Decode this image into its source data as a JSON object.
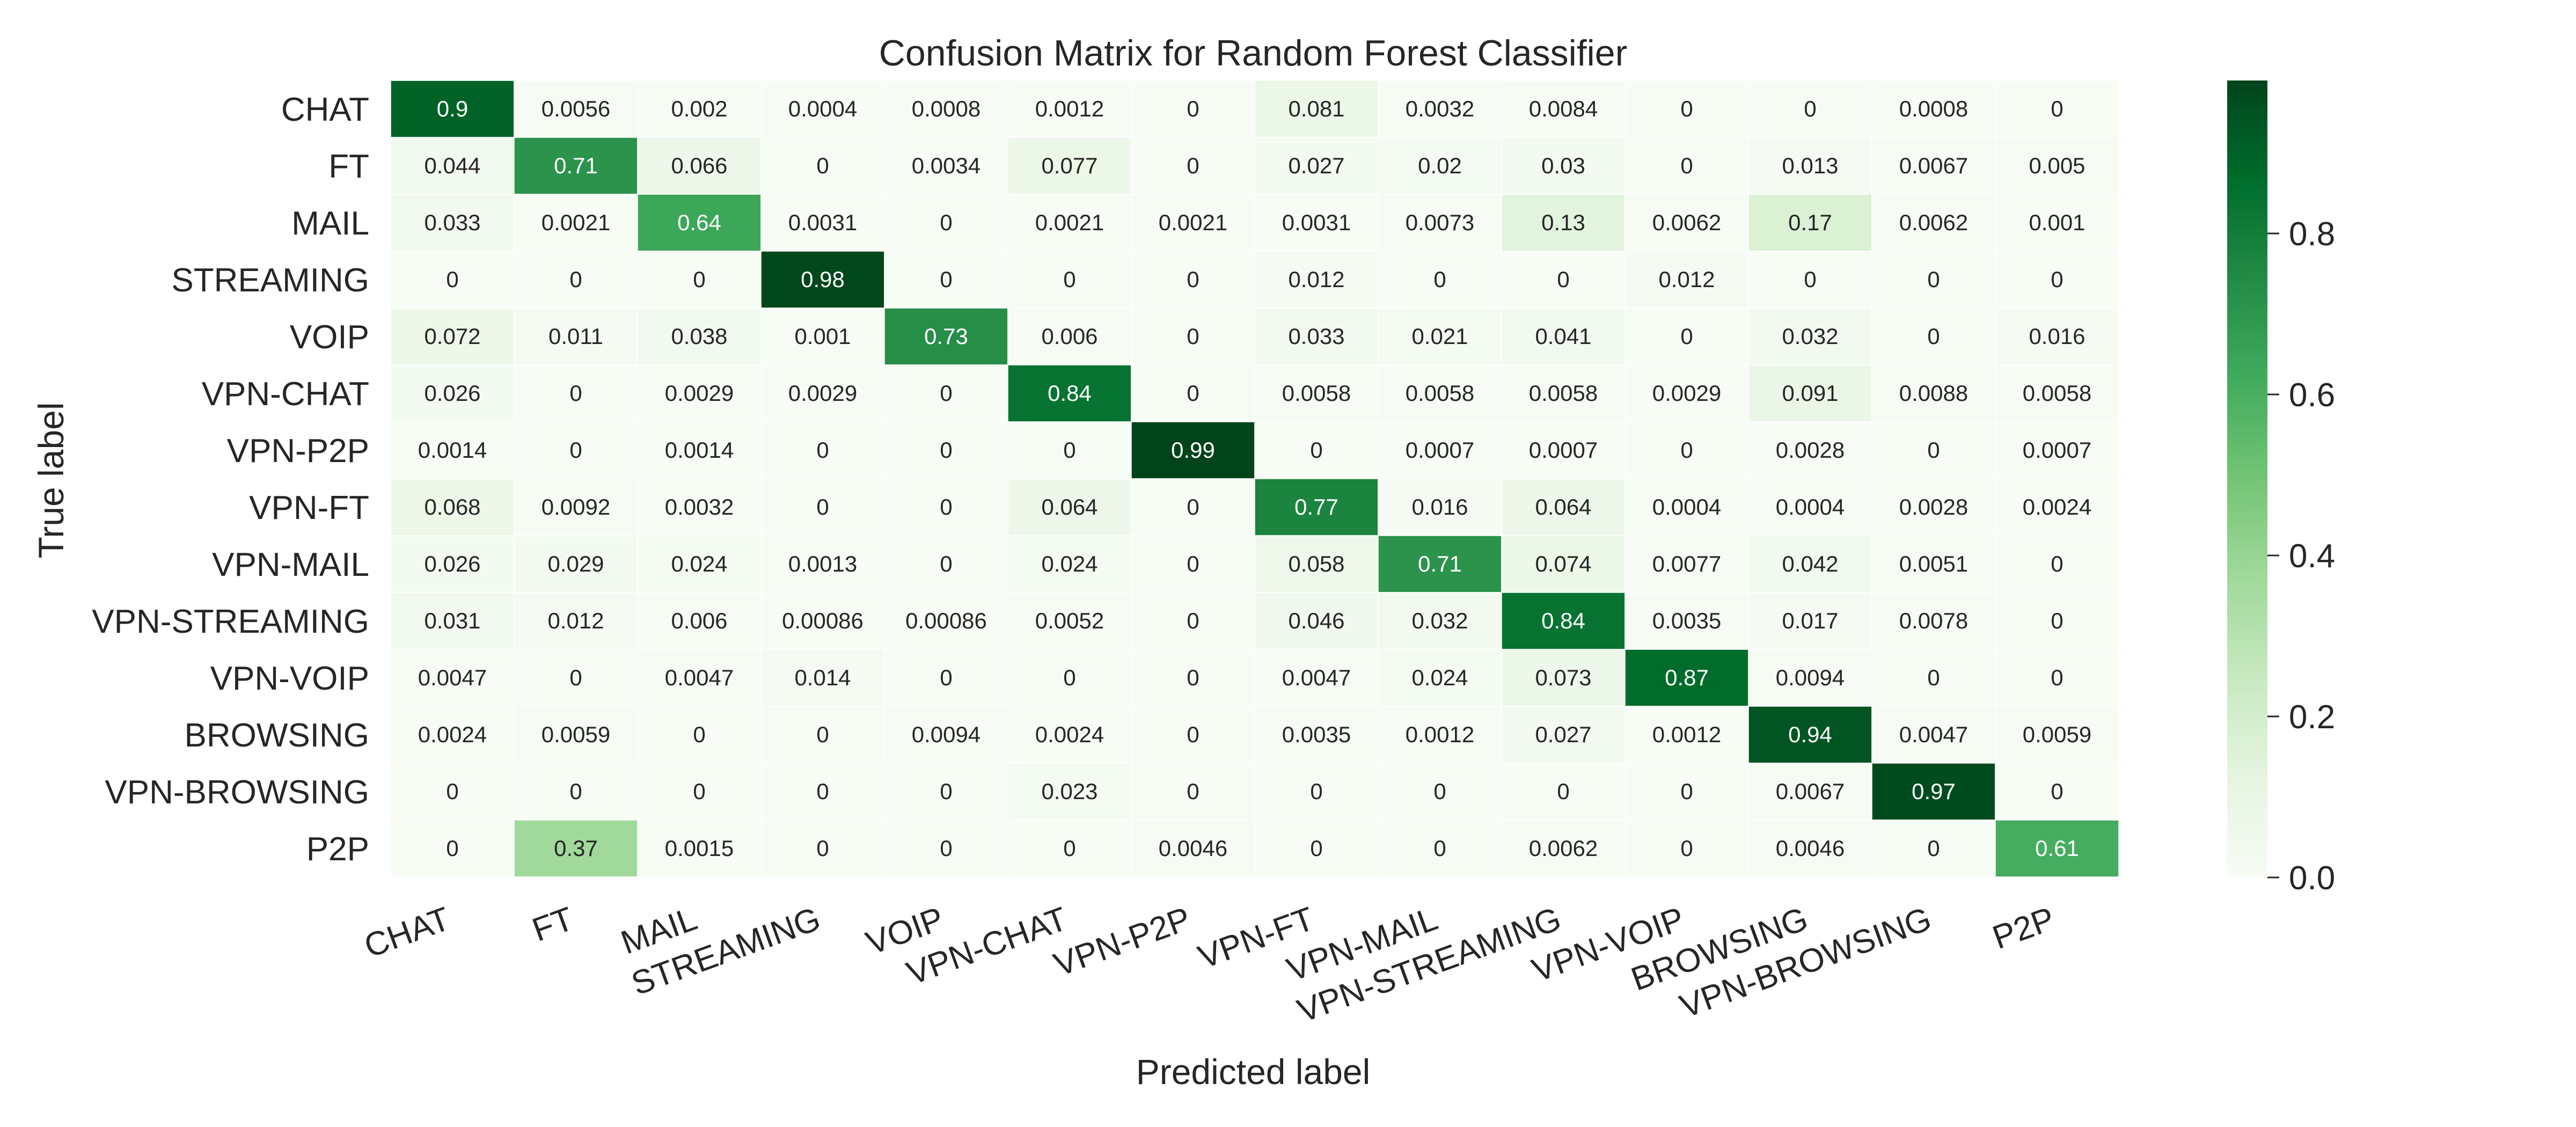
{
  "chart_data": {
    "type": "heatmap",
    "title": "Confusion Matrix for Random Forest Classifier",
    "xlabel": "Predicted label",
    "ylabel": "True label",
    "row_labels": [
      "CHAT",
      "FT",
      "MAIL",
      "STREAMING",
      "VOIP",
      "VPN-CHAT",
      "VPN-P2P",
      "VPN-FT",
      "VPN-MAIL",
      "VPN-STREAMING",
      "VPN-VOIP",
      "BROWSING",
      "VPN-BROWSING",
      "P2P"
    ],
    "col_labels": [
      "CHAT",
      "FT",
      "MAIL",
      "STREAMING",
      "VOIP",
      "VPN-CHAT",
      "VPN-P2P",
      "VPN-FT",
      "VPN-MAIL",
      "VPN-STREAMING",
      "VPN-VOIP",
      "BROWSING",
      "VPN-BROWSING",
      "P2P"
    ],
    "values": [
      [
        0.9,
        0.0056,
        0.002,
        0.0004,
        0.0008,
        0.0012,
        0,
        0.081,
        0.0032,
        0.0084,
        0,
        0,
        0.0008,
        0
      ],
      [
        0.044,
        0.71,
        0.066,
        0,
        0.0034,
        0.077,
        0,
        0.027,
        0.02,
        0.03,
        0,
        0.013,
        0.0067,
        0.005
      ],
      [
        0.033,
        0.0021,
        0.64,
        0.0031,
        0,
        0.0021,
        0.0021,
        0.0031,
        0.0073,
        0.13,
        0.0062,
        0.17,
        0.0062,
        0.001
      ],
      [
        0,
        0,
        0,
        0.98,
        0,
        0,
        0,
        0.012,
        0,
        0,
        0.012,
        0,
        0,
        0
      ],
      [
        0.072,
        0.011,
        0.038,
        0.001,
        0.73,
        0.006,
        0,
        0.033,
        0.021,
        0.041,
        0,
        0.032,
        0,
        0.016
      ],
      [
        0.026,
        0,
        0.0029,
        0.0029,
        0,
        0.84,
        0,
        0.0058,
        0.0058,
        0.0058,
        0.0029,
        0.091,
        0.0088,
        0.0058
      ],
      [
        0.0014,
        0,
        0.0014,
        0,
        0,
        0,
        0.99,
        0,
        0.0007,
        0.0007,
        0,
        0.0028,
        0,
        0.0007
      ],
      [
        0.068,
        0.0092,
        0.0032,
        0,
        0,
        0.064,
        0,
        0.77,
        0.016,
        0.064,
        0.0004,
        0.0004,
        0.0028,
        0.0024
      ],
      [
        0.026,
        0.029,
        0.024,
        0.0013,
        0,
        0.024,
        0,
        0.058,
        0.71,
        0.074,
        0.0077,
        0.042,
        0.0051,
        0
      ],
      [
        0.031,
        0.012,
        0.006,
        0.00086,
        0.00086,
        0.0052,
        0,
        0.046,
        0.032,
        0.84,
        0.0035,
        0.017,
        0.0078,
        0
      ],
      [
        0.0047,
        0,
        0.0047,
        0.014,
        0,
        0,
        0,
        0.0047,
        0.024,
        0.073,
        0.87,
        0.0094,
        0,
        0
      ],
      [
        0.0024,
        0.0059,
        0,
        0,
        0.0094,
        0.0024,
        0,
        0.0035,
        0.0012,
        0.027,
        0.0012,
        0.94,
        0.0047,
        0.0059
      ],
      [
        0,
        0,
        0,
        0,
        0,
        0.023,
        0,
        0,
        0,
        0,
        0,
        0.0067,
        0.97,
        0
      ],
      [
        0,
        0.37,
        0.0015,
        0,
        0,
        0,
        0.0046,
        0,
        0,
        0.0062,
        0,
        0.0046,
        0,
        0.61
      ]
    ],
    "colormap": "Greens",
    "vmin": 0,
    "vmax": 0.99,
    "colorbar_ticks": [
      "0.0",
      "0.2",
      "0.4",
      "0.6",
      "0.8"
    ],
    "colors": {
      "low": "#f7fcf5",
      "high": "#00441b",
      "text_dark": "#262626",
      "text_light": "#ffffff"
    }
  }
}
